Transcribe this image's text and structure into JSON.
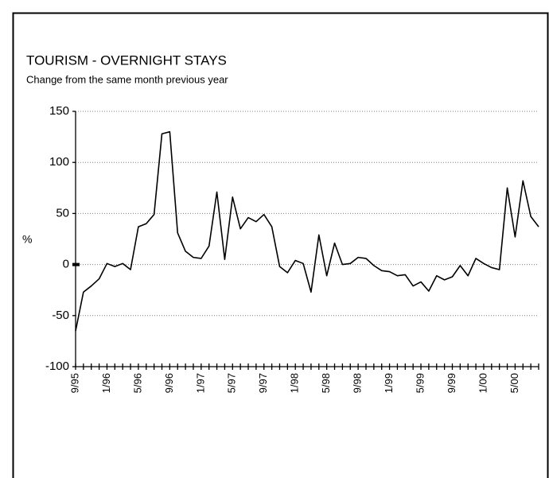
{
  "chart_data": {
    "type": "line",
    "title": "TOURISM - OVERNIGHT STAYS",
    "subtitle": "Change from the same month previous year",
    "ylabel": "%",
    "categories": [
      "9/95",
      null,
      null,
      null,
      "1/96",
      null,
      null,
      null,
      "5/96",
      null,
      null,
      null,
      "9/96",
      null,
      null,
      null,
      "1/97",
      null,
      null,
      null,
      "5/97",
      null,
      null,
      null,
      "9/97",
      null,
      null,
      null,
      "1/98",
      null,
      null,
      null,
      "5/98",
      null,
      null,
      null,
      "9/98",
      null,
      null,
      null,
      "1/99",
      null,
      null,
      null,
      "5/99",
      null,
      null,
      null,
      "9/99",
      null,
      null,
      null,
      "1/00",
      null,
      null,
      null,
      "5/00",
      null,
      null,
      null
    ],
    "series": [
      {
        "name": "Overnight stays",
        "color": "#000000",
        "values": [
          -65,
          -27,
          -21,
          -14,
          1,
          -2,
          1,
          -5,
          37,
          40,
          49,
          128,
          130,
          31,
          13,
          7,
          6,
          18,
          71,
          5,
          66,
          35,
          46,
          42,
          49,
          37,
          -2,
          -8,
          4,
          1,
          -27,
          29,
          -11,
          21,
          0,
          1,
          7,
          6,
          -1,
          -6,
          -7,
          -11,
          -10,
          -21,
          -17,
          -26,
          -11,
          -15,
          -12,
          -1,
          -11,
          6,
          1,
          -3,
          -5,
          75,
          27,
          82,
          47,
          37
        ]
      }
    ],
    "ylim": [
      -100,
      150
    ],
    "yticks": [
      -100,
      -50,
      0,
      50,
      100,
      150
    ],
    "grid": true
  }
}
